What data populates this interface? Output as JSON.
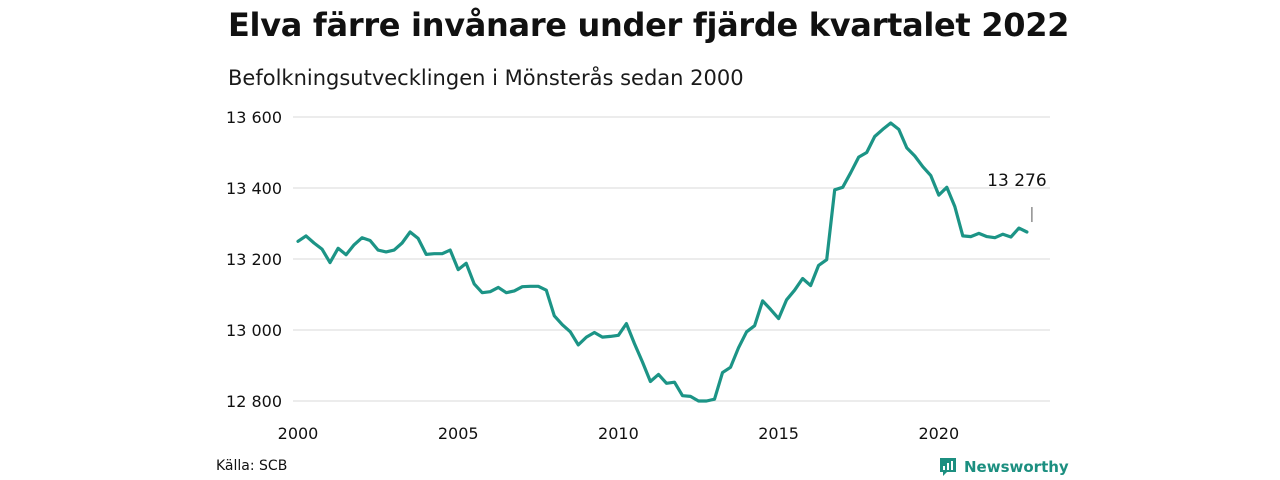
{
  "header": {
    "title": "Elva färre invånare under fjärde kvartalet 2022",
    "subtitle": "Befolkningsutvecklingen i Mönsterås sedan 2000"
  },
  "footer": {
    "source": "Källa: SCB",
    "brand": "Newsworthy"
  },
  "colors": {
    "line": "#1c9486",
    "grid": "#d9d9d9",
    "brand": "#1c8f80"
  },
  "icons": {
    "brand_logo": "newsworthy-logo-icon"
  },
  "chart_data": {
    "type": "line",
    "title": "Elva färre invånare under fjärde kvartalet 2022",
    "subtitle": "Befolkningsutvecklingen i Mönsterås sedan 2000",
    "xlabel": "",
    "ylabel": "",
    "xlim": [
      2000,
      2023.3
    ],
    "ylim": [
      12790,
      13600
    ],
    "x_ticks": [
      2000,
      2005,
      2010,
      2015,
      2020
    ],
    "x_tick_labels": [
      "2000",
      "2005",
      "2010",
      "2015",
      "2020"
    ],
    "y_ticks": [
      12800,
      13000,
      13200,
      13400,
      13600
    ],
    "y_tick_labels": [
      "12 800",
      "13 000",
      "13 200",
      "13 400",
      "13 600"
    ],
    "grid": "horizontal",
    "annotation": {
      "x": 2022.75,
      "y": 13276,
      "label": "13 276"
    },
    "series": [
      {
        "points": [
          [
            2000.0,
            13250
          ],
          [
            2000.25,
            13265
          ],
          [
            2000.5,
            13245
          ],
          [
            2000.75,
            13228
          ],
          [
            2001.0,
            13190
          ],
          [
            2001.25,
            13230
          ],
          [
            2001.5,
            13212
          ],
          [
            2001.75,
            13240
          ],
          [
            2002.0,
            13260
          ],
          [
            2002.25,
            13252
          ],
          [
            2002.5,
            13225
          ],
          [
            2002.75,
            13220
          ],
          [
            2003.0,
            13225
          ],
          [
            2003.25,
            13245
          ],
          [
            2003.5,
            13276
          ],
          [
            2003.75,
            13258
          ],
          [
            2004.0,
            13213
          ],
          [
            2004.25,
            13215
          ],
          [
            2004.5,
            13215
          ],
          [
            2004.75,
            13225
          ],
          [
            2005.0,
            13170
          ],
          [
            2005.25,
            13188
          ],
          [
            2005.5,
            13130
          ],
          [
            2005.75,
            13105
          ],
          [
            2006.0,
            13108
          ],
          [
            2006.25,
            13120
          ],
          [
            2006.5,
            13105
          ],
          [
            2006.75,
            13110
          ],
          [
            2007.0,
            13122
          ],
          [
            2007.25,
            13123
          ],
          [
            2007.5,
            13123
          ],
          [
            2007.75,
            13112
          ],
          [
            2008.0,
            13040
          ],
          [
            2008.25,
            13015
          ],
          [
            2008.5,
            12995
          ],
          [
            2008.75,
            12958
          ],
          [
            2009.0,
            12980
          ],
          [
            2009.25,
            12993
          ],
          [
            2009.5,
            12980
          ],
          [
            2009.75,
            12982
          ],
          [
            2010.0,
            12985
          ],
          [
            2010.25,
            13018
          ],
          [
            2010.5,
            12962
          ],
          [
            2010.75,
            12910
          ],
          [
            2011.0,
            12855
          ],
          [
            2011.25,
            12875
          ],
          [
            2011.5,
            12850
          ],
          [
            2011.75,
            12853
          ],
          [
            2012.0,
            12815
          ],
          [
            2012.25,
            12813
          ],
          [
            2012.5,
            12800
          ],
          [
            2012.75,
            12800
          ],
          [
            2013.0,
            12805
          ],
          [
            2013.25,
            12880
          ],
          [
            2013.5,
            12895
          ],
          [
            2013.75,
            12950
          ],
          [
            2014.0,
            12995
          ],
          [
            2014.25,
            13012
          ],
          [
            2014.5,
            13082
          ],
          [
            2014.75,
            13058
          ],
          [
            2015.0,
            13032
          ],
          [
            2015.25,
            13085
          ],
          [
            2015.5,
            13112
          ],
          [
            2015.75,
            13145
          ],
          [
            2016.0,
            13125
          ],
          [
            2016.25,
            13182
          ],
          [
            2016.5,
            13198
          ],
          [
            2016.75,
            13395
          ],
          [
            2017.0,
            13402
          ],
          [
            2017.25,
            13443
          ],
          [
            2017.5,
            13487
          ],
          [
            2017.75,
            13500
          ],
          [
            2018.0,
            13545
          ],
          [
            2018.25,
            13565
          ],
          [
            2018.5,
            13583
          ],
          [
            2018.75,
            13565
          ],
          [
            2019.0,
            13513
          ],
          [
            2019.25,
            13490
          ],
          [
            2019.5,
            13460
          ],
          [
            2019.75,
            13435
          ],
          [
            2020.0,
            13380
          ],
          [
            2020.25,
            13402
          ],
          [
            2020.5,
            13348
          ],
          [
            2020.75,
            13265
          ],
          [
            2021.0,
            13263
          ],
          [
            2021.25,
            13272
          ],
          [
            2021.5,
            13263
          ],
          [
            2021.75,
            13260
          ],
          [
            2022.0,
            13270
          ],
          [
            2022.25,
            13262
          ],
          [
            2022.5,
            13287
          ],
          [
            2022.75,
            13276
          ]
        ]
      }
    ]
  }
}
